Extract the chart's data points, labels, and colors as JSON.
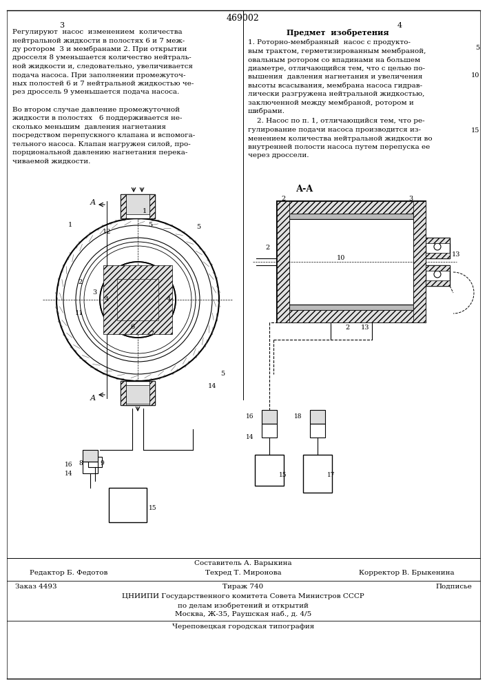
{
  "page_width": 7.07,
  "page_height": 10.0,
  "bg_color": "#ffffff",
  "patent_number": "469002",
  "page_num_left": "3",
  "page_num_right": "4",
  "section_title_right": "Предмет  изобретения",
  "left_text": [
    "Регулируют  насос  изменением  количества",
    "нейтральной жидкости в полостях 6 и 7 меж-",
    "ду ротором  3 и мембранами 2. При открытии",
    "дросселя 8 уменьшается количество нейтраль-",
    "ной жидкости и, следовательно, увеличивается",
    "подача насоса. При заполнении промежуточ-",
    "ных полостей 6 и 7 нейтральной жидкостью че-",
    "рез дроссель 9 уменьшается подача насоса.",
    "",
    "Во втором случае давление промежуточной",
    "жидкости в полостях   6 поддерживается не-",
    "сколько меньшим  давления нагнетания",
    "посредством перепускного клапана и вспомога-",
    "тельного насоса. Клапан нагружен силой, про-",
    "порциональной давлению нагнетания перека-",
    "чиваемой жидкости."
  ],
  "right_claim1": [
    "1. Роторно-мембранный  насос с продукто-",
    "вым трактом, герметизированным мембраной,",
    "овальным ротором со впадинами на большем",
    "диаметре, отличающийся тем, что с целью по-",
    "вышения  давления нагнетания и увеличения",
    "высоты всасывания, мембрана насоса гидрав-",
    "лически разгружена нейтральной жидкостью,",
    "заключенной между мембраной, ротором и",
    "шибрами."
  ],
  "right_claim2": [
    "    2. Насос по п. 1, отличающийся тем, что ре-",
    "гулирование подачи насоса производится из-",
    "менением количества нейтральной жидкости во",
    "внутренней полости насоса путем перепуска ее",
    "через дроссели."
  ],
  "footer_composer": "Составитель А. Варыкина",
  "footer_editor": "Редактор Б. Федотов",
  "footer_techred": "Техред Т. Миронова",
  "footer_corrector": "Корректор В. Брыкенина",
  "footer_order": "Заказ 4493",
  "footer_tirage": "Тираж 740",
  "footer_podpis": "Подписье",
  "footer_org1": "ЦНИИПИ Государственного комитета Совета Министров СССР",
  "footer_org2": "по делам изобретений и открытий",
  "footer_address": "Москва, Ж-35, Раушская наб., д. 4/5",
  "footer_printer": "Череповецкая городская типография"
}
